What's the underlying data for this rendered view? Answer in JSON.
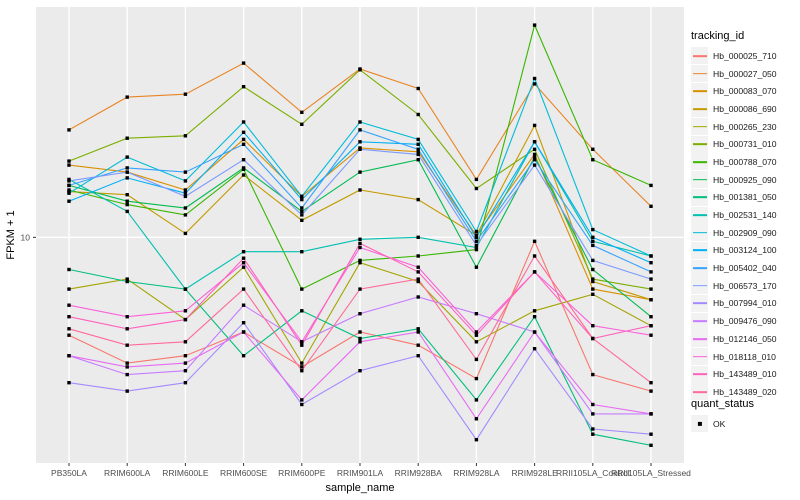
{
  "colors": {
    "panel": "#EBEBEB",
    "grid": "#FFFFFF",
    "tick_text": "#4D4D4D",
    "axis_tick": "#333333",
    "point": "#000000"
  },
  "legend": {
    "tracking_title": "tracking_id",
    "quant_title": "quant_status",
    "quant_items": [
      {
        "label": "OK",
        "marker": "black-square"
      }
    ]
  },
  "chart_data": {
    "type": "line",
    "title": "",
    "xlabel": "sample_name",
    "ylabel": "FPKM + 1",
    "y_scale": "log10",
    "y_ticks": [
      "10"
    ],
    "ylim": [
      3.2,
      32
    ],
    "grid": "vertical-per-category-plus-10-line",
    "legend_position": "right",
    "point_shape": "filled-square-black",
    "categories": [
      "PB350LA",
      "RRIM600LA",
      "RRIM600LE",
      "RRIM600SE",
      "RRIM600PE",
      "RRIM901LA",
      "RRIM928BA",
      "RRIM928LA",
      "RRIM928LE",
      "RRII105LA_Control",
      "RRII105LA_Stressed"
    ],
    "series": [
      {
        "name": "Hb_000025_710",
        "color": "#F8766D",
        "values": [
          6.1,
          5.3,
          5.5,
          6.2,
          5.2,
          6.2,
          5.8,
          4.9,
          9.8,
          5.0,
          4.6
        ]
      },
      {
        "name": "Hb_000027_050",
        "color": "#E88526",
        "values": [
          17.2,
          20.3,
          20.6,
          24.1,
          18.8,
          23.4,
          21.2,
          13.4,
          21.7,
          15.6,
          11.7
        ]
      },
      {
        "name": "Hb_000083_070",
        "color": "#D89000",
        "values": [
          14.4,
          13.9,
          12.7,
          16.4,
          12.3,
          15.7,
          15.4,
          10.1,
          15.2,
          7.7,
          7.3
        ]
      },
      {
        "name": "Hb_000086_690",
        "color": "#C49A00",
        "values": [
          12.6,
          12.4,
          10.2,
          13.7,
          10.9,
          12.7,
          12.1,
          10.1,
          17.6,
          8.0,
          7.3
        ]
      },
      {
        "name": "Hb_000265_230",
        "color": "#A3A500",
        "values": [
          7.7,
          8.1,
          6.6,
          8.6,
          5.3,
          8.8,
          8.0,
          5.9,
          6.9,
          7.5,
          6.4
        ]
      },
      {
        "name": "Hb_000731_010",
        "color": "#7CAE00",
        "values": [
          14.7,
          16.5,
          16.7,
          21.4,
          17.7,
          23.3,
          18.6,
          12.8,
          15.6,
          8.1,
          7.7
        ]
      },
      {
        "name": "Hb_000788_070",
        "color": "#39B600",
        "values": [
          12.7,
          11.8,
          11.2,
          14.1,
          7.7,
          8.9,
          9.1,
          9.4,
          29.2,
          14.8,
          13.0
        ]
      },
      {
        "name": "Hb_000925_090",
        "color": "#00BB4E",
        "values": [
          13.0,
          12.0,
          11.6,
          14.2,
          11.4,
          13.9,
          14.8,
          8.6,
          15.0,
          8.5,
          6.7
        ]
      },
      {
        "name": "Hb_001381_050",
        "color": "#00BF7D",
        "values": [
          8.5,
          8.0,
          7.7,
          5.5,
          6.9,
          6.0,
          6.3,
          4.4,
          6.7,
          3.7,
          3.5
        ]
      },
      {
        "name": "Hb_002531_140",
        "color": "#00C0AF",
        "values": [
          13.4,
          11.4,
          7.7,
          9.3,
          9.3,
          9.9,
          10.0,
          9.5,
          16.2,
          9.8,
          9.1
        ]
      },
      {
        "name": "Hb_002909_090",
        "color": "#00BCD8",
        "values": [
          12.5,
          15.0,
          13.3,
          17.9,
          12.3,
          17.9,
          16.4,
          10.3,
          22.3,
          10.4,
          9.1
        ]
      },
      {
        "name": "Hb_003124_100",
        "color": "#00B0F6",
        "values": [
          12.0,
          13.5,
          12.5,
          17.0,
          12.1,
          16.2,
          16.0,
          10.0,
          16.2,
          10.0,
          8.8
        ]
      },
      {
        "name": "Hb_005402_040",
        "color": "#35A2FF",
        "values": [
          13.0,
          14.2,
          13.9,
          16.0,
          11.6,
          17.2,
          15.6,
          9.8,
          14.8,
          9.6,
          8.4
        ]
      },
      {
        "name": "Hb_006573_170",
        "color": "#7C9AFF",
        "values": [
          13.3,
          13.9,
          12.3,
          14.8,
          11.2,
          15.6,
          15.2,
          9.6,
          14.4,
          8.9,
          8.1
        ]
      },
      {
        "name": "Hb_007994_010",
        "color": "#A58AFF",
        "values": [
          4.8,
          4.6,
          4.8,
          6.5,
          4.3,
          5.1,
          5.5,
          3.6,
          5.7,
          3.8,
          3.7
        ]
      },
      {
        "name": "Hb_009476_090",
        "color": "#C77CFF",
        "values": [
          5.5,
          5.0,
          5.1,
          7.1,
          5.9,
          6.8,
          7.4,
          6.8,
          6.2,
          4.1,
          4.1
        ]
      },
      {
        "name": "Hb_012146_050",
        "color": "#E76BF3",
        "values": [
          5.5,
          5.2,
          5.3,
          6.2,
          4.4,
          5.9,
          6.2,
          4.0,
          6.2,
          4.3,
          4.1
        ]
      },
      {
        "name": "Hb_018118_010",
        "color": "#FA62DB",
        "values": [
          7.1,
          6.7,
          6.9,
          8.8,
          5.9,
          9.5,
          8.6,
          6.2,
          8.4,
          6.4,
          6.1
        ]
      },
      {
        "name": "Hb_143489_010",
        "color": "#FF62BC",
        "values": [
          6.7,
          6.3,
          6.6,
          9.0,
          5.8,
          9.7,
          8.4,
          6.1,
          8.4,
          6.0,
          6.4
        ]
      },
      {
        "name": "Hb_143489_020",
        "color": "#FF6A98",
        "values": [
          6.3,
          5.8,
          5.9,
          7.7,
          5.1,
          7.7,
          8.1,
          5.4,
          9.1,
          6.0,
          4.8
        ]
      }
    ]
  }
}
